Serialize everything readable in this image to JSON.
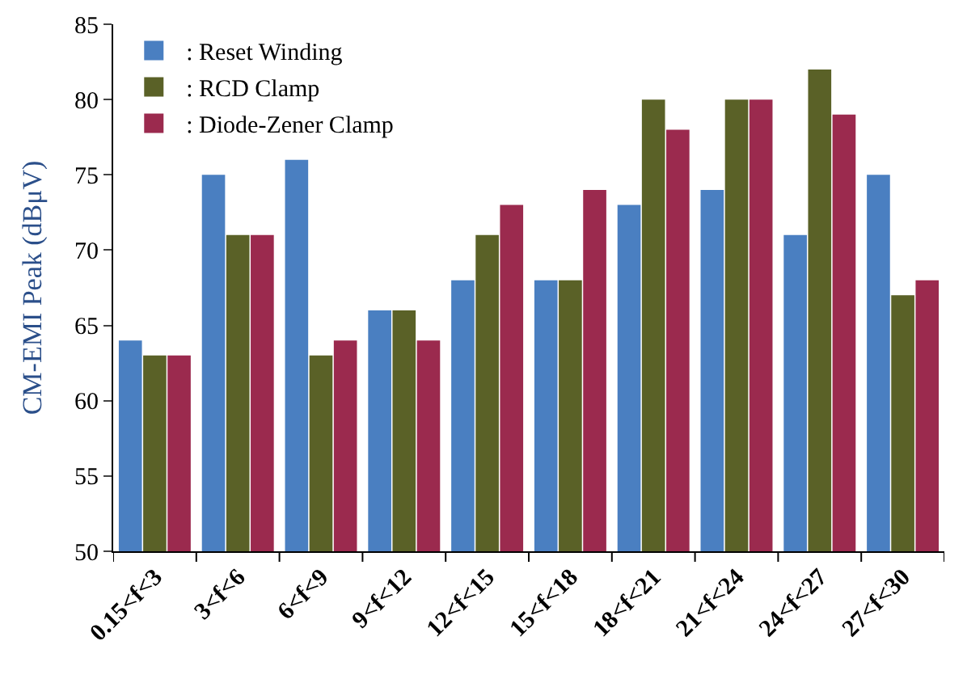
{
  "chart_data": {
    "type": "bar",
    "ylabel": "CM-EMI Peak (dBμV)",
    "categories": [
      "0.15<f<3",
      "3<f<6",
      "6<f<9",
      "9<f<12",
      "12<f<15",
      "15<f<18",
      "18<f<21",
      "21<f<24",
      "24<f<27",
      "27<f<30"
    ],
    "series": [
      {
        "name": ": Reset Winding",
        "color": "#4a7fc1",
        "values": [
          64,
          75,
          76,
          66,
          68,
          68,
          73,
          74,
          71,
          75
        ]
      },
      {
        "name": ": RCD Clamp",
        "color": "#5a6127",
        "values": [
          63,
          71,
          63,
          66,
          71,
          68,
          80,
          80,
          82,
          67
        ]
      },
      {
        "name": ": Diode-Zener Clamp",
        "color": "#9b2a4e",
        "values": [
          63,
          71,
          64,
          64,
          73,
          74,
          78,
          80,
          79,
          68
        ]
      }
    ],
    "ylim": [
      50,
      85
    ],
    "yticks": [
      50,
      55,
      60,
      65,
      70,
      75,
      80,
      85
    ],
    "legend": "top left"
  }
}
